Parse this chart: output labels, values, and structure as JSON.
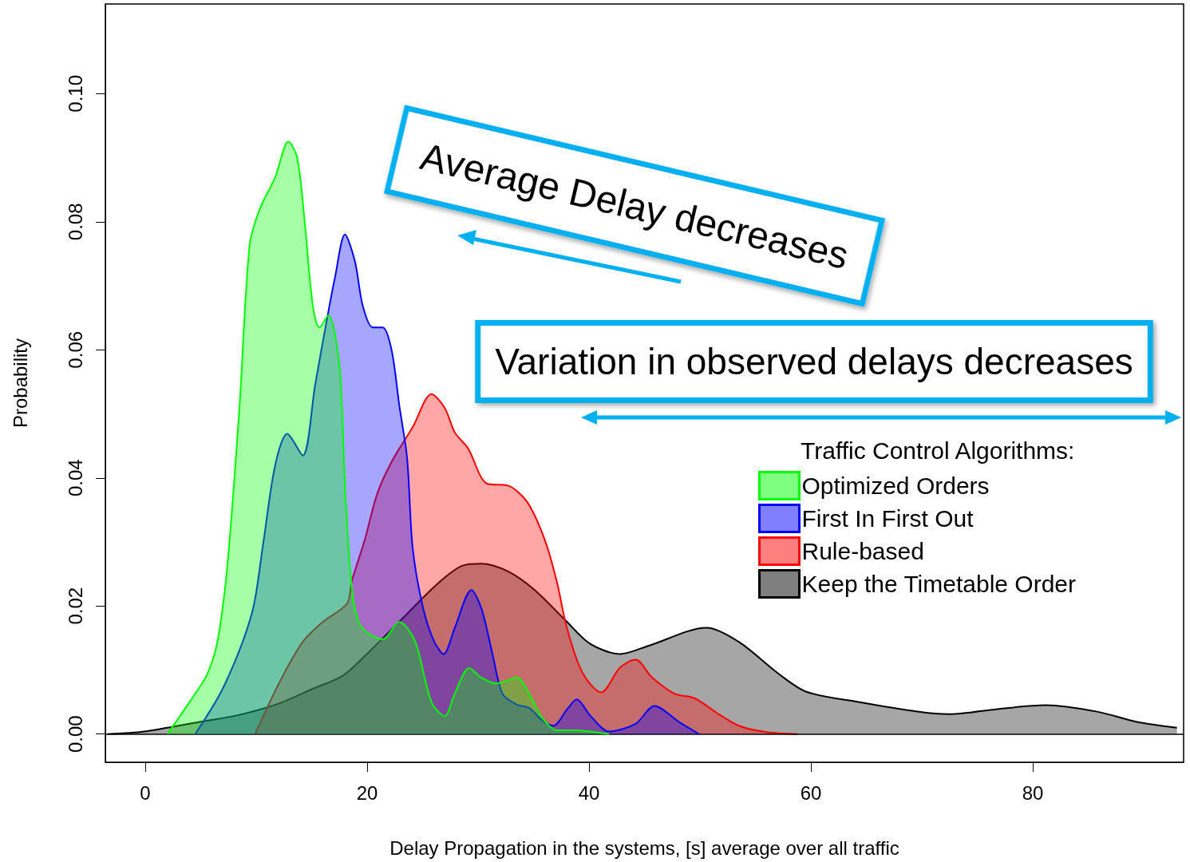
{
  "chart_data": {
    "type": "area",
    "xlabel": "Delay Propagation in the systems, [s] average over all traffic",
    "ylabel": "Probability",
    "legend_title": "Traffic Control Algorithms:",
    "legend": "right",
    "grid": false,
    "xlim": [
      -3.6,
      93.6
    ],
    "ylim": [
      -0.0044,
      0.114
    ],
    "xticks": [
      0,
      20,
      40,
      60,
      80
    ],
    "yticks": [
      {
        "value": 0,
        "label": "0.00"
      },
      {
        "value": 0.02,
        "label": "0.02"
      },
      {
        "value": 0.04,
        "label": "0.04"
      },
      {
        "value": 0.06,
        "label": "0.06"
      },
      {
        "value": 0.08,
        "label": "0.08"
      },
      {
        "value": 0.1,
        "label": "0.10"
      }
    ],
    "ref_lines": [
      {
        "axis": "y",
        "value": 0,
        "color": "#000000"
      }
    ],
    "annotations": [
      "Average Delay decreases",
      "Variation in observed delays decreases"
    ],
    "series": [
      {
        "name": "Optimized Orders",
        "color": "#00ff00",
        "x": [
          2.0,
          4.5,
          5.6,
          6.5,
          7.4,
          8.5,
          9.4,
          10.3,
          11.7,
          12.9,
          13.7,
          14.4,
          15.1,
          15.7,
          16.5,
          17.5,
          18.0,
          18.6,
          19.4,
          21.4,
          22.9,
          24.3,
          25.8,
          27.0,
          27.9,
          29.2,
          30.3,
          31.7,
          33.5,
          34.6,
          35.8,
          37.1,
          38.7,
          41.8
        ],
        "values": [
          0,
          0.0063,
          0.0094,
          0.0144,
          0.0263,
          0.0513,
          0.0763,
          0.0819,
          0.0869,
          0.0925,
          0.09,
          0.0794,
          0.0669,
          0.0635,
          0.0654,
          0.0575,
          0.0388,
          0.0231,
          0.0169,
          0.0148,
          0.0175,
          0.0146,
          0.005,
          0.0028,
          0.0063,
          0.0103,
          0.0088,
          0.0079,
          0.0088,
          0.0063,
          0.0025,
          0.0006,
          0.0006,
          0
        ]
      },
      {
        "name": "First In First Out",
        "color": "#0000ff",
        "x": [
          4.5,
          7.1,
          9.6,
          10.6,
          11.7,
          12.8,
          14.2,
          15.3,
          16.4,
          17.1,
          18.0,
          18.9,
          19.6,
          20.5,
          21.4,
          22.2,
          22.9,
          23.6,
          24.1,
          25.0,
          26.0,
          26.9,
          27.9,
          29.4,
          30.3,
          31.3,
          32.2,
          33.5,
          34.6,
          35.8,
          36.8,
          38.0,
          38.9,
          40.1,
          41.8,
          44.2,
          45.9,
          48.1,
          49.9
        ],
        "values": [
          0,
          0.0075,
          0.0188,
          0.0294,
          0.0419,
          0.0469,
          0.0435,
          0.0544,
          0.065,
          0.0713,
          0.078,
          0.0738,
          0.0669,
          0.0635,
          0.0635,
          0.06,
          0.0513,
          0.0431,
          0.0291,
          0.02,
          0.0146,
          0.0125,
          0.0166,
          0.0225,
          0.0196,
          0.0125,
          0.0063,
          0.0046,
          0.0041,
          0.0021,
          0.0013,
          0.0038,
          0.0054,
          0.0029,
          0.0004,
          0.0016,
          0.0044,
          0.0019,
          0
        ]
      },
      {
        "name": "Rule-based",
        "color": "#ff0000",
        "x": [
          9.9,
          12.1,
          14.2,
          16.0,
          18.2,
          18.6,
          19.8,
          20.9,
          22.2,
          24.1,
          25.8,
          27.0,
          27.9,
          29.1,
          30.8,
          32.7,
          34.4,
          36.0,
          37.1,
          38.0,
          39.4,
          41.1,
          42.8,
          44.2,
          45.7,
          47.7,
          49.5,
          51.7,
          53.5,
          56.0,
          58.8
        ],
        "values": [
          0,
          0.0081,
          0.0144,
          0.0175,
          0.0204,
          0.0238,
          0.0304,
          0.0375,
          0.0425,
          0.0479,
          0.0531,
          0.0509,
          0.0471,
          0.0446,
          0.0391,
          0.0388,
          0.0363,
          0.0304,
          0.0238,
          0.0166,
          0.0096,
          0.0065,
          0.0104,
          0.0116,
          0.0088,
          0.0063,
          0.0056,
          0.0031,
          0.0013,
          0.0003,
          0
        ]
      },
      {
        "name": "Keep the Timetable Order",
        "color": "#000000",
        "x": [
          -3.4,
          -0.1,
          4.9,
          8.5,
          12.1,
          15.0,
          17.8,
          20.2,
          23.1,
          26.3,
          28.6,
          30.3,
          32.7,
          35.1,
          37.8,
          40.1,
          42.8,
          45.4,
          50.6,
          53.5,
          57.1,
          59.6,
          64.3,
          69.6,
          72.5,
          76.8,
          81.2,
          85.8,
          89.4,
          93.0
        ],
        "values": [
          0,
          0.0004,
          0.0019,
          0.003,
          0.0048,
          0.007,
          0.0091,
          0.0129,
          0.0179,
          0.0234,
          0.0263,
          0.0266,
          0.0254,
          0.0225,
          0.0179,
          0.0141,
          0.0125,
          0.0138,
          0.0166,
          0.0144,
          0.0094,
          0.0066,
          0.005,
          0.0035,
          0.0031,
          0.0039,
          0.0045,
          0.0035,
          0.0019,
          0.001
        ]
      }
    ]
  }
}
